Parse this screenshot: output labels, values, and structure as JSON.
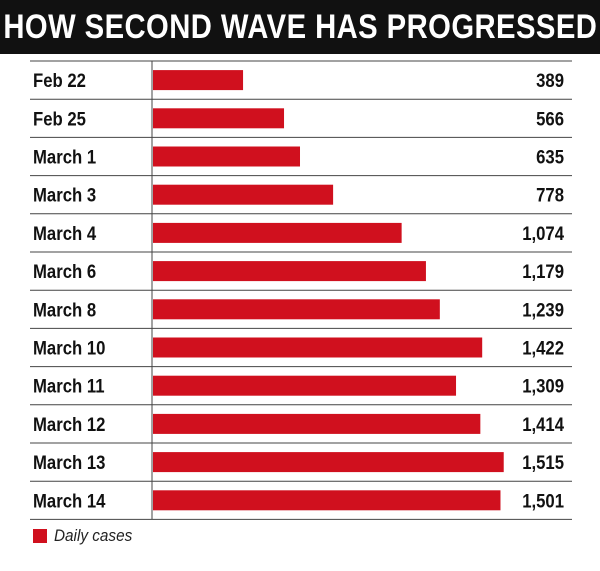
{
  "chart_data": {
    "type": "bar",
    "orientation": "horizontal",
    "title": "HOW SECOND WAVE HAS PROGRESSED",
    "categories": [
      "Feb 22",
      "Feb 25",
      "March 1",
      "March 3",
      "March 4",
      "March 6",
      "March 8",
      "March 10",
      "March 11",
      "March 12",
      "March 13",
      "March 14"
    ],
    "series": [
      {
        "name": "Daily cases",
        "values": [
          389,
          566,
          635,
          778,
          1074,
          1179,
          1239,
          1422,
          1309,
          1414,
          1515,
          1501
        ],
        "value_labels": [
          "389",
          "566",
          "635",
          "778",
          "1,074",
          "1,179",
          "1,239",
          "1,422",
          "1,309",
          "1,414",
          "1,515",
          "1,501"
        ]
      }
    ],
    "grid": true,
    "legend": "bottom-left",
    "colors": {
      "bar": "#d0101e",
      "title_background": "#111111",
      "title_text": "#ffffff",
      "grid": "#444444"
    }
  }
}
